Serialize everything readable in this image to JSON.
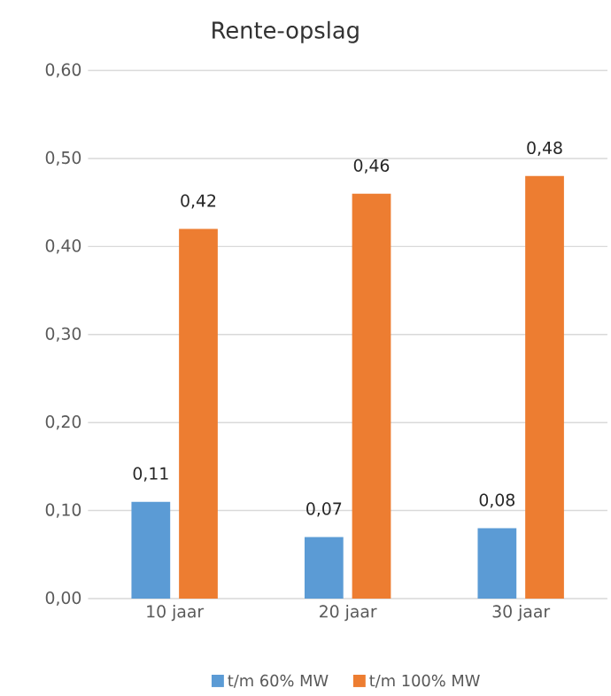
{
  "chart_data": {
    "type": "bar",
    "title": "Rente-opslag",
    "categories": [
      "10 jaar",
      "20 jaar",
      "30 jaar"
    ],
    "series": [
      {
        "name": "t/m 60% MW",
        "color": "#5b9bd5",
        "values": [
          0.11,
          0.07,
          0.08
        ],
        "value_labels": [
          "0,11",
          "0,07",
          "0,08"
        ]
      },
      {
        "name": "t/m 100% MW",
        "color": "#ed7d31",
        "values": [
          0.42,
          0.46,
          0.48
        ],
        "value_labels": [
          "0,42",
          "0,46",
          "0,48"
        ]
      }
    ],
    "ylim": [
      0,
      0.6
    ],
    "yticks": [
      {
        "value": 0,
        "label": "0,00"
      },
      {
        "value": 0.1,
        "label": "0,10"
      },
      {
        "value": 0.2,
        "label": "0,20"
      },
      {
        "value": 0.3,
        "label": "0,30"
      },
      {
        "value": 0.4,
        "label": "0,40"
      },
      {
        "value": 0.5,
        "label": "0,50"
      },
      {
        "value": 0.6,
        "label": "0,60"
      }
    ],
    "grid": "y",
    "legend": "bottom"
  }
}
